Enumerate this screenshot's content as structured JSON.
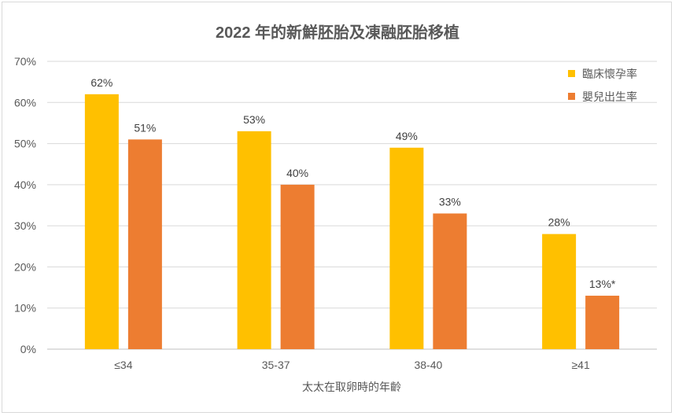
{
  "chart_data": {
    "type": "bar",
    "title": "2022 年的新鮮胚胎及凍融胚胎移植",
    "xlabel": "太太在取卵時的年齡",
    "ylabel": "",
    "categories": [
      "≤34",
      "35-37",
      "38-40",
      "≥41"
    ],
    "ylim": [
      0,
      70
    ],
    "yticks": [
      0,
      10,
      20,
      30,
      40,
      50,
      60,
      70
    ],
    "ytick_labels": [
      "0%",
      "10%",
      "20%",
      "30%",
      "40%",
      "50%",
      "60%",
      "70%"
    ],
    "grid": true,
    "legend_position": "top-right",
    "series": [
      {
        "name": "臨床懷孕率",
        "color": "#FFC000",
        "values": [
          62,
          53,
          49,
          28
        ],
        "labels": [
          "62%",
          "53%",
          "49%",
          "28%"
        ]
      },
      {
        "name": "嬰兒出生率",
        "color": "#ED7D31",
        "values": [
          51,
          40,
          33,
          13
        ],
        "labels": [
          "51%",
          "40%",
          "33%",
          "13%*"
        ]
      }
    ]
  }
}
